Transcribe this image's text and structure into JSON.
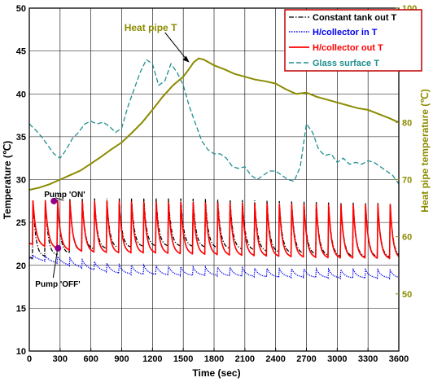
{
  "chart_data": {
    "type": "line",
    "xlabel": "Time (sec)",
    "ylabel_left": "Temperature (℃)",
    "ylabel_right": "Heat pipe temperature (℃)",
    "xlim": [
      0,
      3600
    ],
    "ylim_left": [
      10,
      50
    ],
    "ylim_right": [
      40,
      100
    ],
    "x_ticks": [
      0,
      300,
      600,
      900,
      1200,
      1500,
      1800,
      2100,
      2400,
      2700,
      3000,
      3300,
      3600
    ],
    "y_ticks_left": [
      10,
      15,
      20,
      25,
      30,
      35,
      40,
      45,
      50
    ],
    "y_ticks_right": [
      50,
      60,
      70,
      80,
      90,
      100
    ],
    "grid": true,
    "legend_position": "top-right",
    "series": [
      {
        "name": "Constant tank out T",
        "axis": "left",
        "color": "#000000",
        "style": "dashdot",
        "pattern": "periodic-spikes",
        "period": 120,
        "first_spike": 270,
        "x": [
          0,
          300,
          600,
          900,
          1200,
          1500,
          1800,
          2100,
          2400,
          2700,
          3000,
          3300,
          3600
        ],
        "baseline": [
          20.8,
          21.2,
          21.8,
          22.0,
          22.2,
          22.2,
          22.0,
          21.8,
          21.5,
          21.3,
          21.0,
          20.9,
          20.9
        ],
        "peak": [
          27.5,
          27.7,
          27.8,
          27.8,
          27.8,
          27.8,
          27.7,
          27.6,
          27.5,
          27.4,
          27.3,
          27.3,
          27.2
        ]
      },
      {
        "name": "H/collector in T",
        "axis": "left",
        "color": "#0000ee",
        "style": "dotted",
        "pattern": "periodic-bumps",
        "x": [
          0,
          300,
          600,
          900,
          1200,
          1500,
          1800,
          2100,
          2400,
          2700,
          3000,
          3300,
          3600
        ],
        "baseline": [
          20.8,
          20.2,
          19.5,
          19.0,
          18.9,
          18.8,
          18.8,
          18.7,
          18.6,
          18.6,
          18.5,
          18.5,
          18.5
        ],
        "peak": [
          21.2,
          21.0,
          20.5,
          20.0,
          20.0,
          19.8,
          19.8,
          19.7,
          19.6,
          19.6,
          19.5,
          19.5,
          19.4
        ]
      },
      {
        "name": "H/collector out T",
        "axis": "left",
        "color": "#ff0000",
        "style": "solid",
        "pattern": "periodic-spikes",
        "x": [
          0,
          300,
          600,
          900,
          1200,
          1500,
          1800,
          2100,
          2400,
          2700,
          3000,
          3300,
          3600
        ],
        "baseline": [
          22.5,
          21.8,
          21.5,
          21.4,
          21.4,
          21.3,
          21.2,
          21.1,
          21.0,
          20.9,
          20.8,
          20.8,
          20.7
        ],
        "peak": [
          27.6,
          27.5,
          27.5,
          27.5,
          27.4,
          27.4,
          27.3,
          27.3,
          27.2,
          27.2,
          27.1,
          27.1,
          27.1
        ]
      },
      {
        "name": "Glass surface T",
        "axis": "left",
        "color": "#1f8f8f",
        "style": "dashed",
        "x": [
          0,
          60,
          120,
          180,
          240,
          300,
          360,
          420,
          480,
          540,
          600,
          660,
          720,
          780,
          840,
          900,
          960,
          1020,
          1080,
          1140,
          1200,
          1260,
          1320,
          1380,
          1440,
          1500,
          1560,
          1620,
          1680,
          1740,
          1800,
          1860,
          1920,
          1980,
          2040,
          2100,
          2160,
          2220,
          2280,
          2340,
          2400,
          2460,
          2520,
          2580,
          2640,
          2700,
          2760,
          2820,
          2880,
          2940,
          3000,
          3060,
          3120,
          3180,
          3240,
          3300,
          3360,
          3420,
          3480,
          3540,
          3600
        ],
        "y": [
          36.5,
          35.8,
          35.0,
          34.0,
          33.0,
          32.5,
          33.5,
          34.8,
          35.5,
          36.5,
          36.8,
          36.5,
          36.7,
          36.2,
          35.5,
          36.0,
          38.5,
          40.5,
          42.5,
          44.0,
          43.5,
          41.0,
          41.5,
          43.5,
          42.5,
          41.0,
          38.5,
          36.5,
          34.5,
          33.5,
          33.0,
          33.0,
          32.5,
          31.5,
          31.3,
          31.5,
          30.5,
          30.0,
          30.5,
          31.0,
          31.0,
          30.5,
          30.0,
          29.8,
          31.5,
          36.5,
          35.5,
          33.5,
          32.8,
          33.0,
          32.0,
          32.5,
          31.8,
          32.0,
          31.8,
          32.2,
          32.0,
          31.5,
          31.0,
          30.5,
          29.5
        ]
      },
      {
        "name": "Heat pipe T",
        "axis": "right",
        "color": "#8b8b00",
        "style": "solid",
        "x": [
          0,
          100,
          200,
          300,
          400,
          500,
          600,
          700,
          800,
          900,
          1000,
          1100,
          1200,
          1300,
          1400,
          1500,
          1550,
          1600,
          1650,
          1700,
          1800,
          1900,
          2000,
          2100,
          2200,
          2300,
          2400,
          2500,
          2600,
          2700,
          2800,
          2900,
          3000,
          3100,
          3200,
          3300,
          3400,
          3500,
          3600
        ],
        "y": [
          68.2,
          68.6,
          69.2,
          70.0,
          70.8,
          71.6,
          72.8,
          74.0,
          75.3,
          76.5,
          78.2,
          80.0,
          82.2,
          84.5,
          86.5,
          88.0,
          89.2,
          90.5,
          91.2,
          91.0,
          90.0,
          89.3,
          88.5,
          88.0,
          87.5,
          87.2,
          86.8,
          85.8,
          85.0,
          85.2,
          84.5,
          84.0,
          83.5,
          83.0,
          82.5,
          82.2,
          81.5,
          80.8,
          80.0
        ]
      }
    ],
    "annotations": [
      {
        "text": "Heat pipe T",
        "x": 1560,
        "y_right": 90.5
      },
      {
        "text": "Pump 'ON'",
        "x": 240,
        "y": 27.5
      },
      {
        "text": "Pump 'OFF'",
        "x": 280,
        "y": 22.0
      }
    ],
    "colors": {
      "marker": "#8b008b",
      "grid": "#000000",
      "frame": "#000000",
      "right_axis": "#8b8b00"
    }
  }
}
